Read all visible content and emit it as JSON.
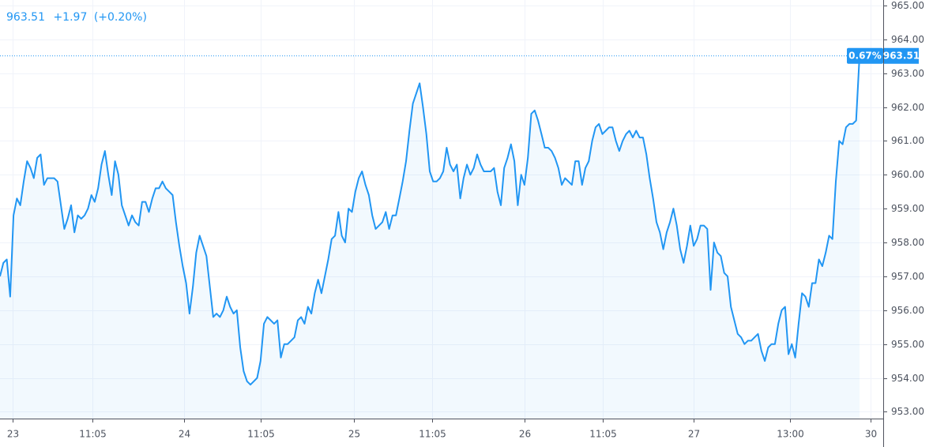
{
  "chart_data": {
    "type": "line",
    "header": {
      "price": "963.51",
      "change": "+1.97",
      "change_pct": "(+0.20%)"
    },
    "price_label": {
      "percent": "0.67%",
      "price": "963.51"
    },
    "color": "#2196f3",
    "grid": true,
    "values": [
      957.0,
      957.4,
      957.5,
      956.4,
      958.8,
      959.3,
      959.1,
      959.8,
      960.4,
      960.2,
      959.9,
      960.5,
      960.6,
      959.7,
      959.9,
      959.9,
      959.9,
      959.8,
      959.1,
      958.4,
      958.7,
      959.1,
      958.3,
      958.8,
      958.7,
      958.8,
      959.0,
      959.4,
      959.2,
      959.6,
      960.3,
      960.7,
      960.0,
      959.4,
      960.4,
      960.0,
      959.1,
      958.8,
      958.5,
      958.8,
      958.6,
      958.5,
      959.2,
      959.2,
      958.9,
      959.3,
      959.6,
      959.6,
      959.8,
      959.6,
      959.5,
      959.4,
      958.6,
      957.9,
      957.3,
      956.8,
      955.9,
      956.7,
      957.7,
      958.2,
      957.9,
      957.6,
      956.7,
      955.8,
      955.9,
      955.8,
      956.0,
      956.4,
      956.1,
      955.9,
      956.0,
      954.9,
      954.2,
      953.9,
      953.8,
      953.9,
      954.0,
      954.5,
      955.6,
      955.8,
      955.7,
      955.6,
      955.7,
      954.6,
      955.0,
      955.0,
      955.1,
      955.2,
      955.7,
      955.8,
      955.6,
      956.1,
      955.9,
      956.5,
      956.9,
      956.5,
      957.0,
      957.5,
      958.1,
      958.2,
      958.9,
      958.2,
      958.0,
      959.0,
      958.9,
      959.5,
      959.9,
      960.1,
      959.7,
      959.4,
      958.8,
      958.4,
      958.5,
      958.6,
      958.9,
      958.4,
      958.8,
      958.8,
      959.3,
      959.8,
      960.4,
      961.3,
      962.1,
      962.4,
      962.7,
      962.0,
      961.2,
      960.1,
      959.8,
      959.8,
      959.9,
      960.1,
      960.8,
      960.3,
      960.1,
      960.3,
      959.3,
      959.9,
      960.3,
      960.0,
      960.2,
      960.6,
      960.3,
      960.1,
      960.1,
      960.1,
      960.2,
      959.5,
      959.1,
      960.2,
      960.5,
      960.9,
      960.4,
      959.1,
      960.0,
      959.7,
      960.5,
      961.8,
      961.9,
      961.6,
      961.2,
      960.8,
      960.8,
      960.7,
      960.5,
      960.2,
      959.7,
      959.9,
      959.8,
      959.7,
      960.4,
      960.4,
      959.7,
      960.2,
      960.4,
      961.0,
      961.4,
      961.5,
      961.2,
      961.3,
      961.4,
      961.4,
      961.0,
      960.7,
      961.0,
      961.2,
      961.3,
      961.1,
      961.3,
      961.1,
      961.1,
      960.6,
      959.9,
      959.3,
      958.6,
      958.3,
      957.8,
      958.3,
      958.6,
      959.0,
      958.5,
      957.8,
      957.4,
      957.9,
      958.5,
      957.9,
      958.1,
      958.5,
      958.5,
      958.4,
      956.6,
      958.0,
      957.7,
      957.6,
      957.1,
      957.0,
      956.1,
      955.7,
      955.3,
      955.2,
      955.0,
      955.1,
      955.1,
      955.2,
      955.3,
      954.8,
      954.5,
      954.9,
      955.0,
      955.0,
      955.6,
      956.0,
      956.1,
      954.7,
      955.0,
      954.6,
      955.6,
      956.5,
      956.4,
      956.1,
      956.8,
      956.8,
      957.5,
      957.3,
      957.7,
      958.2,
      958.1,
      959.8,
      961.0,
      960.9,
      961.4,
      961.5,
      961.5,
      961.6,
      963.51
    ],
    "xlim": [
      0,
      261
    ],
    "xticks": [
      {
        "value": 3.7,
        "label": "23"
      },
      {
        "value": 27.3,
        "label": "11:05"
      },
      {
        "value": 54.4,
        "label": "24"
      },
      {
        "value": 77,
        "label": "11:05"
      },
      {
        "value": 104.6,
        "label": "25"
      },
      {
        "value": 127.7,
        "label": "11:05"
      },
      {
        "value": 155,
        "label": "26"
      },
      {
        "value": 178.1,
        "label": "11:05"
      },
      {
        "value": 205,
        "label": "27"
      },
      {
        "value": 233.5,
        "label": "13:00"
      },
      {
        "value": 257.3,
        "label": "30"
      }
    ],
    "ylim": [
      952.8,
      965.16
    ],
    "yticks": [
      {
        "value": 953,
        "label": "953.00"
      },
      {
        "value": 954,
        "label": "954.00"
      },
      {
        "value": 955,
        "label": "955.00"
      },
      {
        "value": 956,
        "label": "956.00"
      },
      {
        "value": 957,
        "label": "957.00"
      },
      {
        "value": 958,
        "label": "958.00"
      },
      {
        "value": 959,
        "label": "959.00"
      },
      {
        "value": 960,
        "label": "960.00"
      },
      {
        "value": 961,
        "label": "961.00"
      },
      {
        "value": 962,
        "label": "962.00"
      },
      {
        "value": 963,
        "label": "963.00"
      },
      {
        "value": 964,
        "label": "964.00"
      },
      {
        "value": 965,
        "label": "965.00"
      }
    ]
  }
}
